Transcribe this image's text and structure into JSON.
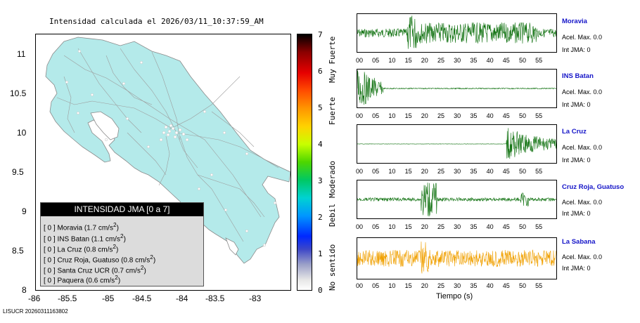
{
  "map": {
    "title": "Intensidad calculada el 2026/03/11_10:37:59_AM",
    "lat_ticks": [
      "11",
      "10.5",
      "10",
      "9.5",
      "9",
      "8.5",
      "8"
    ],
    "lon_ticks": [
      "-86",
      "-85.5",
      "-85",
      "-84.5",
      "-84",
      "-83.5",
      "-83"
    ]
  },
  "legend": {
    "title": "INTENSIDAD JMA [0 a 7]",
    "stations": [
      {
        "level": "[ 0 ]",
        "name": "Moravia",
        "accel": "(1.7 cm/s",
        "exp": "2",
        "close": ")"
      },
      {
        "level": "[ 0 ]",
        "name": "INS Batan",
        "accel": "(1.1 cm/s",
        "exp": "2",
        "close": ")"
      },
      {
        "level": "[ 0 ]",
        "name": "La Cruz",
        "accel": "(0.8 cm/s",
        "exp": "2",
        "close": ")"
      },
      {
        "level": "[ 0 ]",
        "name": "Cruz Roja, Guatuso",
        "accel": "(0.8 cm/s",
        "exp": "2",
        "close": ")"
      },
      {
        "level": "[ 0 ]",
        "name": "Santa Cruz UCR",
        "accel": "(0.7 cm/s",
        "exp": "2",
        "close": ")"
      },
      {
        "level": "[ 0 ]",
        "name": "Paquera",
        "accel": "(0.6 cm/s",
        "exp": "2",
        "close": ")"
      }
    ]
  },
  "colorbar": {
    "numbers": [
      "7",
      "6",
      "5",
      "4",
      "3",
      "2",
      "1",
      "0"
    ],
    "words": [
      "Muy Fuerte",
      "Fuerte",
      "Moderado",
      "Debil",
      "No sentido"
    ]
  },
  "traces": [
    {
      "station": "Moravia",
      "accel": "Acel. Max. 0.0",
      "int": "Int JMA: 0",
      "color": "#0a6e0a"
    },
    {
      "station": "INS Batan",
      "accel": "Acel. Max. 0.0",
      "int": "Int JMA: 0",
      "color": "#0a6e0a"
    },
    {
      "station": "La Cruz",
      "accel": "Acel. Max. 0.0",
      "int": "Int JMA: 0",
      "color": "#0a6e0a"
    },
    {
      "station": "Cruz Roja, Guatuso",
      "accel": "Acel. Max. 0.0",
      "int": "Int JMA: 0",
      "color": "#0a6e0a"
    },
    {
      "station": "La Sabana",
      "accel": "Acel. Max. 0.0",
      "int": "Int JMA: 0",
      "color": "#f0a000"
    }
  ],
  "time_ticks": [
    "00",
    "05",
    "10",
    "15",
    "20",
    "25",
    "30",
    "35",
    "40",
    "45",
    "50",
    "55"
  ],
  "time_axis_label": "Tiempo (s)",
  "footer": "LISUCR 20260311163802"
}
